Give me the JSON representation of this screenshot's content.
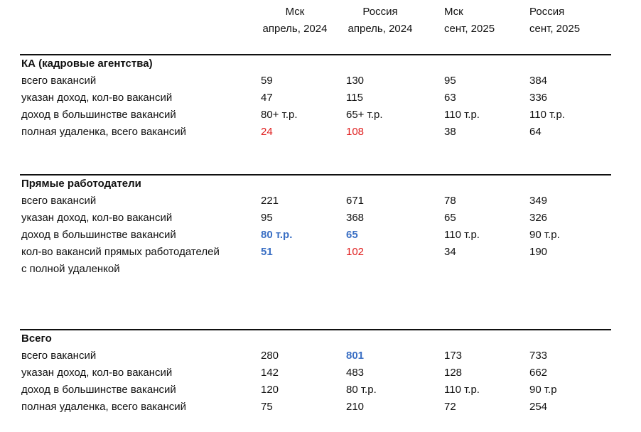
{
  "header": {
    "columns": [
      [
        "Мск",
        "апрель, 2024"
      ],
      [
        "Россия",
        "апрель, 2024"
      ],
      [
        "Мск",
        "сент, 2025"
      ],
      [
        "Россия",
        "сент, 2025"
      ]
    ]
  },
  "sections": [
    {
      "title": "КА (кадровые агентства)",
      "rows": [
        [
          "всего вакансий",
          "59",
          "130",
          "95",
          "384"
        ],
        [
          "указан доход, кол-во вакансий",
          "47",
          "115",
          "63",
          "336"
        ],
        [
          "доход в большинстве вакансий",
          "80+ т.р.",
          "65+ т.р.",
          "110 т.р.",
          "110 т.р."
        ],
        [
          "полная удаленка, всего вакансий",
          "24",
          "108",
          "38",
          "64"
        ]
      ]
    },
    {
      "title": "Прямые работодатели",
      "rows": [
        [
          "всего вакансий",
          "221",
          "671",
          "78",
          "349"
        ],
        [
          "указан доход, кол-во вакансий",
          "95",
          "368",
          "65",
          "326"
        ],
        [
          "доход в большинстве  вакансий",
          "80 т.р.",
          "65",
          "110 т.р.",
          "90 т.р."
        ],
        [
          [
            "кол-во вакансий прямых работодателей",
            "с полной удаленкой"
          ],
          "51",
          "102",
          "34",
          "190"
        ]
      ]
    },
    {
      "title": "Всего",
      "rows": [
        [
          "всего вакансий",
          "280",
          "801",
          "173",
          "733"
        ],
        [
          "указан доход, кол-во вакансий",
          "142",
          "483",
          "128",
          "662"
        ],
        [
          "доход в большинстве  вакансий",
          "120",
          "80 т.р.",
          "110 т.р.",
          "90 т.р"
        ],
        [
          "полная удаленка, всего вакансий",
          "75",
          "210",
          "72",
          "254"
        ]
      ]
    }
  ]
}
